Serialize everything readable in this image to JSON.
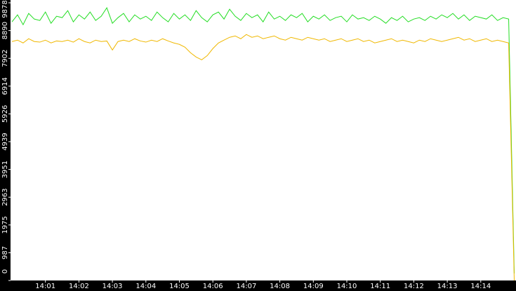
{
  "chart_data": {
    "type": "line",
    "categories": [
      null,
      null,
      null,
      null,
      null,
      null,
      "14:01",
      null,
      null,
      null,
      null,
      null,
      "14:02",
      null,
      null,
      null,
      null,
      null,
      "14:03",
      null,
      null,
      null,
      null,
      null,
      "14:04",
      null,
      null,
      null,
      null,
      null,
      "14:05",
      null,
      null,
      null,
      null,
      null,
      "14:06",
      null,
      null,
      null,
      null,
      null,
      "14:07",
      null,
      null,
      null,
      null,
      null,
      "14:08",
      null,
      null,
      null,
      null,
      null,
      "14:09",
      null,
      null,
      null,
      null,
      null,
      "14:10",
      null,
      null,
      null,
      null,
      null,
      "14:11",
      null,
      null,
      null,
      null,
      null,
      "14:12",
      null,
      null,
      null,
      null,
      null,
      "14:13",
      null,
      null,
      null,
      null,
      null,
      "14:14",
      null,
      null,
      null,
      null,
      null,
      null
    ],
    "series": [
      {
        "color": "#22dd22",
        "values": [
          9200,
          9450,
          9100,
          9500,
          9300,
          9250,
          9550,
          9150,
          9400,
          9350,
          9600,
          9200,
          9450,
          9300,
          9550,
          9250,
          9400,
          9700,
          9150,
          9350,
          9500,
          9200,
          9450,
          9300,
          9400,
          9250,
          9550,
          9350,
          9200,
          9500,
          9300,
          9450,
          9250,
          9600,
          9350,
          9200,
          9450,
          9550,
          9300,
          9650,
          9400,
          9250,
          9500,
          9350,
          9450,
          9200,
          9550,
          9300,
          9400,
          9250,
          9450,
          9350,
          9500,
          9200,
          9400,
          9300,
          9450,
          9250,
          9350,
          9400,
          9200,
          9450,
          9300,
          9350,
          9250,
          9400,
          9300,
          9150,
          9350,
          9250,
          9400,
          9200,
          9300,
          9350,
          9250,
          9400,
          9300,
          9450,
          9350,
          9500,
          9300,
          9450,
          9250,
          9400,
          9350,
          9300,
          9450,
          9250,
          9350,
          9300,
          250
        ]
      },
      {
        "color": "#f0b800",
        "values": [
          8500,
          8550,
          8450,
          8600,
          8500,
          8480,
          8550,
          8450,
          8520,
          8500,
          8550,
          8480,
          8600,
          8500,
          8450,
          8550,
          8500,
          8520,
          8200,
          8500,
          8550,
          8500,
          8600,
          8520,
          8480,
          8550,
          8500,
          8600,
          8520,
          8450,
          8400,
          8300,
          8100,
          7950,
          7850,
          8000,
          8250,
          8450,
          8550,
          8650,
          8700,
          8600,
          8750,
          8650,
          8700,
          8600,
          8650,
          8700,
          8600,
          8550,
          8650,
          8600,
          8550,
          8650,
          8600,
          8550,
          8600,
          8500,
          8550,
          8600,
          8500,
          8550,
          8600,
          8500,
          8550,
          8450,
          8500,
          8550,
          8600,
          8500,
          8550,
          8500,
          8450,
          8550,
          8500,
          8600,
          8550,
          8500,
          8550,
          8600,
          8650,
          8550,
          8600,
          8500,
          8550,
          8600,
          8500,
          8550,
          8500,
          8450,
          0
        ]
      }
    ],
    "ylim": [
      0,
      9878
    ],
    "yticks": [
      0,
      987,
      1975,
      2963,
      3951,
      4939,
      5926,
      6914,
      7902,
      8890,
      9878
    ]
  }
}
